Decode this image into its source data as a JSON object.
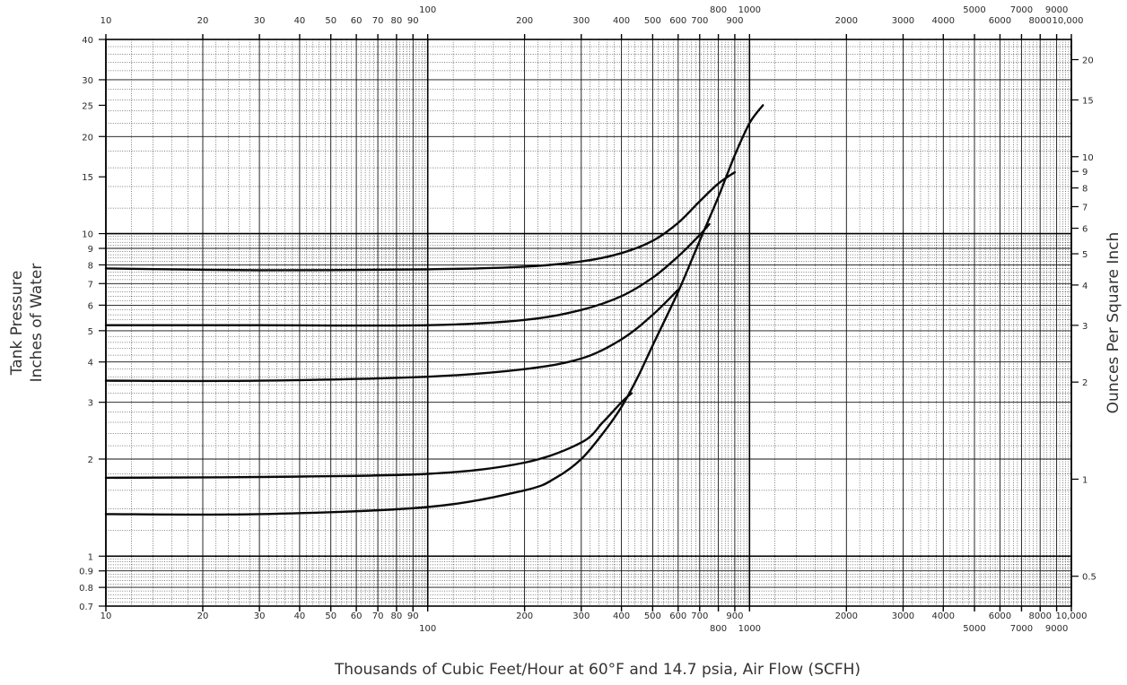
{
  "chart_data": {
    "type": "line",
    "x_scale": "log",
    "y_scale": "log",
    "grid": true,
    "xlim": [
      10,
      10000
    ],
    "ylim": [
      0.7,
      40
    ],
    "y2lim_oz": [
      0.404,
      23.1
    ],
    "xlabel": "Thousands of Cubic Feet/Hour at 60°F and 14.7 psia, Air Flow (SCFH)",
    "ylabel_lines": [
      "Tank Pressure",
      "Inches of Water"
    ],
    "y2label": "Ounces Per Square Inch",
    "x_ticks_top": [
      {
        "v": 10,
        "t": "10"
      },
      {
        "v": 20,
        "t": "20"
      },
      {
        "v": 30,
        "t": "30"
      },
      {
        "v": 40,
        "t": "40"
      },
      {
        "v": 50,
        "t": "50"
      },
      {
        "v": 60,
        "t": "60"
      },
      {
        "v": 70,
        "t": "70"
      },
      {
        "v": 80,
        "t": "80"
      },
      {
        "v": 90,
        "t": "90"
      },
      {
        "v": 100,
        "t": "100"
      },
      {
        "v": 200,
        "t": "200"
      },
      {
        "v": 300,
        "t": "300"
      },
      {
        "v": 400,
        "t": "400"
      },
      {
        "v": 500,
        "t": "500"
      },
      {
        "v": 600,
        "t": "600"
      },
      {
        "v": 700,
        "t": "700"
      },
      {
        "v": 800,
        "t": "800"
      },
      {
        "v": 900,
        "t": "900"
      },
      {
        "v": 1000,
        "t": "1000"
      },
      {
        "v": 2000,
        "t": "2000"
      },
      {
        "v": 3000,
        "t": "3000"
      },
      {
        "v": 4000,
        "t": "4000"
      },
      {
        "v": 5000,
        "t": "5000"
      },
      {
        "v": 6000,
        "t": "6000"
      },
      {
        "v": 7000,
        "t": "7000"
      },
      {
        "v": 8000,
        "t": "8000"
      },
      {
        "v": 9000,
        "t": "9000"
      },
      {
        "v": 10000,
        "t": "10,000"
      }
    ],
    "x_ticks_bottom": [
      {
        "v": 10,
        "t": "10"
      },
      {
        "v": 20,
        "t": "20"
      },
      {
        "v": 30,
        "t": "30"
      },
      {
        "v": 40,
        "t": "40"
      },
      {
        "v": 50,
        "t": "50"
      },
      {
        "v": 60,
        "t": "60"
      },
      {
        "v": 70,
        "t": "70"
      },
      {
        "v": 80,
        "t": "80"
      },
      {
        "v": 90,
        "t": "90"
      },
      {
        "v": 100,
        "t": "100"
      },
      {
        "v": 200,
        "t": "200"
      },
      {
        "v": 300,
        "t": "300"
      },
      {
        "v": 400,
        "t": "400"
      },
      {
        "v": 500,
        "t": "500"
      },
      {
        "v": 600,
        "t": "600"
      },
      {
        "v": 700,
        "t": "700"
      },
      {
        "v": 800,
        "t": "800"
      },
      {
        "v": 900,
        "t": "900"
      },
      {
        "v": 1000,
        "t": "1000"
      },
      {
        "v": 2000,
        "t": "2000"
      },
      {
        "v": 3000,
        "t": "3000"
      },
      {
        "v": 4000,
        "t": "4000"
      },
      {
        "v": 5000,
        "t": "5000"
      },
      {
        "v": 6000,
        "t": "6000"
      },
      {
        "v": 7000,
        "t": "7000"
      },
      {
        "v": 8000,
        "t": "8000"
      },
      {
        "v": 9000,
        "t": "9000"
      },
      {
        "v": 10000,
        "t": "10,000"
      }
    ],
    "y_ticks_left": [
      {
        "v": 0.7,
        "t": "0.7"
      },
      {
        "v": 0.8,
        "t": "0.8"
      },
      {
        "v": 0.9,
        "t": "0.9"
      },
      {
        "v": 1,
        "t": "1"
      },
      {
        "v": 2,
        "t": "2"
      },
      {
        "v": 3,
        "t": "3"
      },
      {
        "v": 4,
        "t": "4"
      },
      {
        "v": 5,
        "t": "5"
      },
      {
        "v": 6,
        "t": "6"
      },
      {
        "v": 7,
        "t": "7"
      },
      {
        "v": 8,
        "t": "8"
      },
      {
        "v": 9,
        "t": "9"
      },
      {
        "v": 10,
        "t": "10"
      },
      {
        "v": 15,
        "t": "15"
      },
      {
        "v": 20,
        "t": "20"
      },
      {
        "v": 25,
        "t": "25"
      },
      {
        "v": 30,
        "t": "30"
      },
      {
        "v": 40,
        "t": "40"
      }
    ],
    "y_ticks_right_oz": [
      {
        "v": 0.5,
        "t": "0.5"
      },
      {
        "v": 1,
        "t": "1"
      },
      {
        "v": 2,
        "t": "2"
      },
      {
        "v": 3,
        "t": "3"
      },
      {
        "v": 4,
        "t": "4"
      },
      {
        "v": 5,
        "t": "5"
      },
      {
        "v": 6,
        "t": "6"
      },
      {
        "v": 7,
        "t": "7"
      },
      {
        "v": 8,
        "t": "8"
      },
      {
        "v": 9,
        "t": "9"
      },
      {
        "v": 10,
        "t": "10"
      },
      {
        "v": 15,
        "t": "15"
      },
      {
        "v": 20,
        "t": "20"
      }
    ],
    "series": [
      {
        "points": [
          [
            10,
            7.8
          ],
          [
            30,
            7.7
          ],
          [
            100,
            7.75
          ],
          [
            200,
            7.9
          ],
          [
            300,
            8.2
          ],
          [
            400,
            8.7
          ],
          [
            500,
            9.5
          ],
          [
            600,
            10.8
          ],
          [
            700,
            12.6
          ],
          [
            800,
            14.3
          ],
          [
            900,
            15.5
          ]
        ]
      },
      {
        "points": [
          [
            10,
            5.2
          ],
          [
            30,
            5.2
          ],
          [
            100,
            5.2
          ],
          [
            200,
            5.4
          ],
          [
            300,
            5.8
          ],
          [
            400,
            6.4
          ],
          [
            500,
            7.3
          ],
          [
            600,
            8.5
          ],
          [
            700,
            9.9
          ],
          [
            750,
            10.7
          ]
        ]
      },
      {
        "points": [
          [
            10,
            3.5
          ],
          [
            30,
            3.5
          ],
          [
            100,
            3.6
          ],
          [
            200,
            3.8
          ],
          [
            300,
            4.1
          ],
          [
            400,
            4.7
          ],
          [
            500,
            5.6
          ],
          [
            600,
            6.7
          ]
        ]
      },
      {
        "points": [
          [
            10,
            1.75
          ],
          [
            30,
            1.76
          ],
          [
            100,
            1.8
          ],
          [
            200,
            1.95
          ],
          [
            300,
            2.25
          ],
          [
            350,
            2.6
          ],
          [
            400,
            3.0
          ],
          [
            430,
            3.2
          ]
        ]
      },
      {
        "points": [
          [
            10,
            1.35
          ],
          [
            30,
            1.35
          ],
          [
            100,
            1.42
          ],
          [
            200,
            1.6
          ],
          [
            250,
            1.75
          ],
          [
            300,
            2.0
          ],
          [
            350,
            2.4
          ],
          [
            400,
            2.9
          ],
          [
            450,
            3.6
          ],
          [
            500,
            4.5
          ],
          [
            600,
            6.6
          ],
          [
            700,
            9.5
          ],
          [
            800,
            13.0
          ],
          [
            900,
            17.5
          ],
          [
            1000,
            22.0
          ],
          [
            1100,
            25.0
          ]
        ]
      }
    ]
  }
}
